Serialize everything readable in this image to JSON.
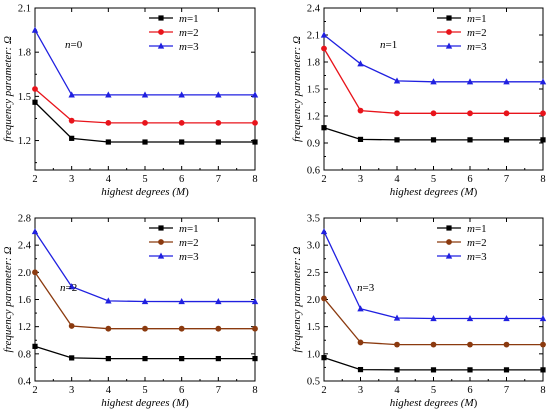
{
  "chart_data": [
    {
      "type": "line",
      "panel_label": {
        "var": "n",
        "eq": "=0"
      },
      "xlabel": {
        "main": "highest degrees (",
        "var": "M",
        "close": ")"
      },
      "ylabel": {
        "main": "frequency parameter:  Ω"
      },
      "x": [
        2,
        3,
        4,
        5,
        6,
        7,
        8
      ],
      "xlim": [
        2,
        8
      ],
      "ylim": [
        1.0,
        2.1
      ],
      "yticks": [
        "1.2",
        "1.5",
        "1.8",
        "2.1"
      ],
      "yticks_values": [
        1.2,
        1.5,
        1.8,
        2.1
      ],
      "xticks": [
        "2",
        "3",
        "4",
        "5",
        "6",
        "7",
        "8"
      ],
      "legend_position": "top-right",
      "series": [
        {
          "name": "m=1",
          "var": "m",
          "eq": "=1",
          "color": "#000000",
          "marker": "square",
          "values": [
            1.46,
            1.215,
            1.19,
            1.19,
            1.19,
            1.19,
            1.19
          ]
        },
        {
          "name": "m=2",
          "var": "m",
          "eq": "=2",
          "color": "#e8141b",
          "marker": "circle",
          "values": [
            1.55,
            1.335,
            1.32,
            1.32,
            1.32,
            1.32,
            1.32
          ]
        },
        {
          "name": "m=3",
          "var": "m",
          "eq": "=3",
          "color": "#2020e0",
          "marker": "triangle",
          "values": [
            1.95,
            1.51,
            1.51,
            1.51,
            1.51,
            1.51,
            1.51
          ]
        }
      ]
    },
    {
      "type": "line",
      "panel_label": {
        "var": "n",
        "eq": "=1"
      },
      "xlabel": {
        "main": "highest degrees (",
        "var": "M",
        "close": ")"
      },
      "ylabel": {
        "main": "frequency parameter:  Ω"
      },
      "x": [
        2,
        3,
        4,
        5,
        6,
        7,
        8
      ],
      "xlim": [
        2,
        8
      ],
      "ylim": [
        0.6,
        2.4
      ],
      "yticks": [
        "0.6",
        "0.9",
        "1.2",
        "1.5",
        "1.8",
        "2.1",
        "2.4"
      ],
      "yticks_values": [
        0.6,
        0.9,
        1.2,
        1.5,
        1.8,
        2.1,
        2.4
      ],
      "xticks": [
        "2",
        "3",
        "4",
        "5",
        "6",
        "7",
        "8"
      ],
      "legend_position": "top-right",
      "series": [
        {
          "name": "m=1",
          "var": "m",
          "eq": "=1",
          "color": "#000000",
          "marker": "square",
          "values": [
            1.07,
            0.94,
            0.935,
            0.935,
            0.935,
            0.935,
            0.935
          ]
        },
        {
          "name": "m=2",
          "var": "m",
          "eq": "=2",
          "color": "#e8141b",
          "marker": "circle",
          "values": [
            1.95,
            1.26,
            1.23,
            1.23,
            1.23,
            1.23,
            1.23
          ]
        },
        {
          "name": "m=3",
          "var": "m",
          "eq": "=3",
          "color": "#2020e0",
          "marker": "triangle",
          "values": [
            2.1,
            1.78,
            1.59,
            1.58,
            1.58,
            1.58,
            1.58
          ]
        }
      ]
    },
    {
      "type": "line",
      "panel_label": {
        "var": "n",
        "eq": "=2"
      },
      "xlabel": {
        "main": "highest degrees (",
        "var": "M",
        "close": ")"
      },
      "ylabel": {
        "main": "frequency parameter:  Ω"
      },
      "x": [
        2,
        3,
        4,
        5,
        6,
        7,
        8
      ],
      "xlim": [
        2,
        8
      ],
      "ylim": [
        0.4,
        2.8
      ],
      "yticks": [
        "0.4",
        "0.8",
        "1.2",
        "1.6",
        "2.0",
        "2.4",
        "2.8"
      ],
      "yticks_values": [
        0.4,
        0.8,
        1.2,
        1.6,
        2.0,
        2.4,
        2.8
      ],
      "xticks": [
        "2",
        "3",
        "4",
        "5",
        "6",
        "7",
        "8"
      ],
      "legend_position": "top-right",
      "series": [
        {
          "name": "m=1",
          "var": "m",
          "eq": "=1",
          "color": "#000000",
          "marker": "square",
          "values": [
            0.91,
            0.74,
            0.73,
            0.73,
            0.73,
            0.73,
            0.73
          ]
        },
        {
          "name": "m=2",
          "var": "m",
          "eq": "=2",
          "color": "#8b3a0f",
          "marker": "circle",
          "values": [
            2.0,
            1.21,
            1.17,
            1.17,
            1.17,
            1.17,
            1.17
          ]
        },
        {
          "name": "m=3",
          "var": "m",
          "eq": "=3",
          "color": "#2020e0",
          "marker": "triangle",
          "values": [
            2.6,
            1.79,
            1.58,
            1.57,
            1.57,
            1.57,
            1.57
          ]
        }
      ]
    },
    {
      "type": "line",
      "panel_label": {
        "var": "n",
        "eq": "=3"
      },
      "xlabel": {
        "main": "highest degrees (",
        "var": "M",
        "close": ")"
      },
      "ylabel": {
        "main": "frequency parameter:  Ω"
      },
      "x": [
        2,
        3,
        4,
        5,
        6,
        7,
        8
      ],
      "xlim": [
        2,
        8
      ],
      "ylim": [
        0.5,
        3.5
      ],
      "yticks": [
        "0.5",
        "1.0",
        "1.5",
        "2.0",
        "2.5",
        "3.0",
        "3.5"
      ],
      "yticks_values": [
        0.5,
        1.0,
        1.5,
        2.0,
        2.5,
        3.0,
        3.5
      ],
      "xticks": [
        "2",
        "3",
        "4",
        "5",
        "6",
        "7",
        "8"
      ],
      "legend_position": "top-right",
      "series": [
        {
          "name": "m=1",
          "var": "m",
          "eq": "=1",
          "color": "#000000",
          "marker": "square",
          "values": [
            0.93,
            0.71,
            0.705,
            0.705,
            0.705,
            0.705,
            0.705
          ]
        },
        {
          "name": "m=2",
          "var": "m",
          "eq": "=2",
          "color": "#8b3a0f",
          "marker": "circle",
          "values": [
            2.02,
            1.21,
            1.17,
            1.17,
            1.17,
            1.17,
            1.17
          ]
        },
        {
          "name": "m=3",
          "var": "m",
          "eq": "=3",
          "color": "#2020e0",
          "marker": "triangle",
          "values": [
            3.25,
            1.83,
            1.66,
            1.65,
            1.65,
            1.65,
            1.65
          ]
        }
      ]
    }
  ]
}
